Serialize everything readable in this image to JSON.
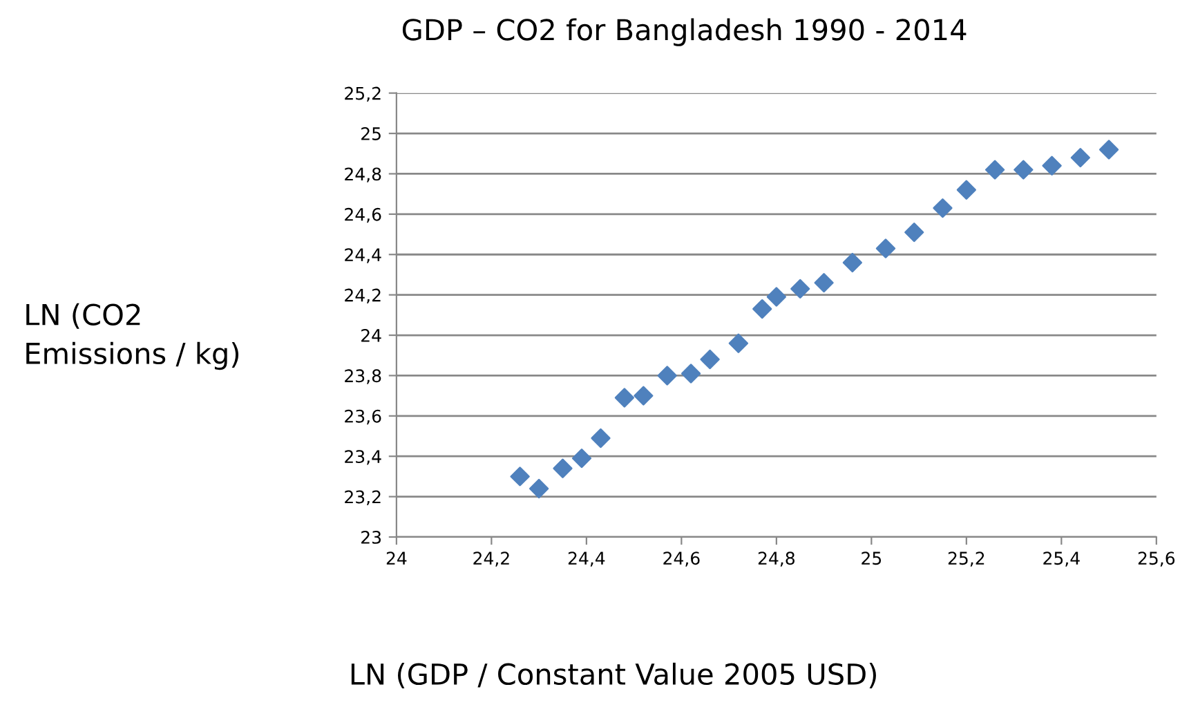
{
  "chart_data": {
    "type": "scatter",
    "title": "GDP – CO2 for Bangladesh 1990 - 2014",
    "xlabel": "LN (GDP / Constant Value 2005 USD)",
    "ylabel": "LN (CO2\nEmissions / kg)",
    "x": [
      24.26,
      24.3,
      24.35,
      24.39,
      24.43,
      24.48,
      24.52,
      24.57,
      24.62,
      24.66,
      24.72,
      24.77,
      24.8,
      24.85,
      24.9,
      24.96,
      25.03,
      25.09,
      25.15,
      25.2,
      25.26,
      25.32,
      25.38,
      25.44,
      25.5
    ],
    "series": [
      {
        "color": "#4f81bd",
        "values": [
          23.3,
          23.24,
          23.34,
          23.39,
          23.49,
          23.69,
          23.7,
          23.8,
          23.81,
          23.88,
          23.96,
          24.13,
          24.19,
          24.23,
          24.26,
          24.36,
          24.43,
          24.51,
          24.63,
          24.72,
          24.82,
          24.82,
          24.84,
          24.88,
          24.92
        ]
      }
    ],
    "marker": "diamond",
    "grid": "y",
    "legend": false,
    "xlim": [
      24,
      25.6
    ],
    "xticks": [
      24,
      {
        "value": 24.2,
        "label": "24,2"
      },
      {
        "value": 24.4,
        "label": "24,4"
      },
      {
        "value": 24.6,
        "label": "24,6"
      },
      {
        "value": 24.8,
        "label": "24,8"
      },
      25,
      {
        "value": 25.2,
        "label": "25,2"
      },
      {
        "value": 25.4,
        "label": "25,4"
      },
      {
        "value": 25.6,
        "label": "25,6"
      }
    ],
    "ylim": [
      23,
      25.2
    ],
    "yticks": [
      23,
      {
        "value": 23.2,
        "label": "23,2"
      },
      {
        "value": 23.4,
        "label": "23,4"
      },
      {
        "value": 23.6,
        "label": "23,6"
      },
      {
        "value": 23.8,
        "label": "23,8"
      },
      24,
      {
        "value": 24.2,
        "label": "24,2"
      },
      {
        "value": 24.4,
        "label": "24,4"
      },
      {
        "value": 24.6,
        "label": "24,6"
      },
      {
        "value": 24.8,
        "label": "24,8"
      },
      25,
      {
        "value": 25.2,
        "label": "25,2"
      }
    ]
  }
}
